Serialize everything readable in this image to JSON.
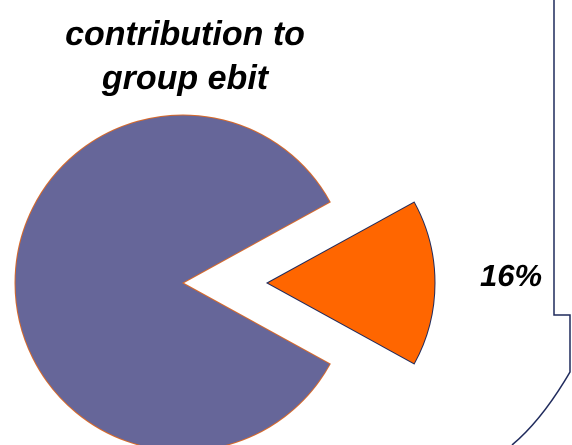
{
  "chart_data": {
    "type": "pie",
    "title_lines": [
      "contribution to",
      "group ebit"
    ],
    "slices": [
      {
        "value": 84,
        "color": "#666699",
        "exploded": false
      },
      {
        "value": 16,
        "label": "16%",
        "color": "#ff6600",
        "exploded": true
      }
    ],
    "legend": false
  },
  "colors": {
    "slice_stroke": "#d86a2a",
    "frame_line": "#1f2a5c"
  }
}
